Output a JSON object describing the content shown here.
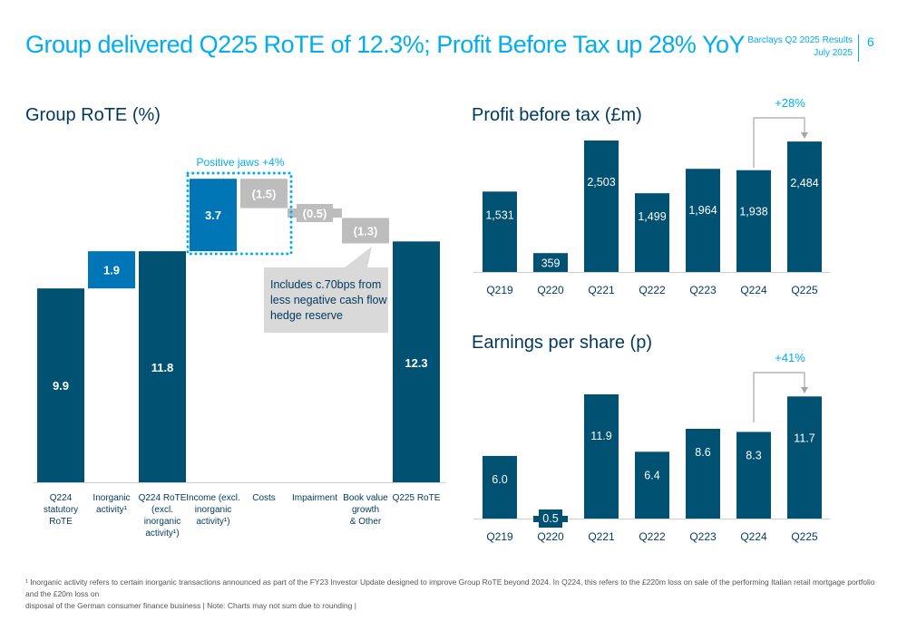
{
  "header": {
    "title": "Group delivered Q225 RoTE of 12.3%; Profit Before Tax up 28% YoY",
    "report_name": "Barclays Q2 2025 Results",
    "report_date": "July 2025",
    "page_number": "6"
  },
  "colors": {
    "dark_blue": "#005172",
    "mid_blue": "#0076b6",
    "light_blue": "#00aeef",
    "grey_bar": "#bdbdbd",
    "callout_grey": "#d9d9d9",
    "title_navy": "#00395d"
  },
  "chart_data": [
    {
      "type": "bar",
      "subtype": "waterfall",
      "title": "Group RoTE (%)",
      "categories": [
        "Q224 statutory RoTE",
        "Inorganic activity¹",
        "Q224 RoTE (excl. inorganic activity¹)",
        "Income (excl. inorganic activity¹)",
        "Costs",
        "Impairment",
        "Book value growth & Other",
        "Q225 RoTE"
      ],
      "category_lines": [
        [
          "Q224",
          "statutory",
          "RoTE"
        ],
        [
          "Inorganic",
          "activity¹"
        ],
        [
          "Q224 RoTE",
          "(excl.",
          "inorganic",
          "activity¹)"
        ],
        [
          "Income (excl.",
          "inorganic",
          "activity¹)"
        ],
        [
          "Costs"
        ],
        [
          "Impairment"
        ],
        [
          "Book value",
          "growth",
          "& Other"
        ],
        [
          "Q225 RoTE"
        ]
      ],
      "values": [
        9.9,
        1.9,
        11.8,
        3.7,
        -1.5,
        -0.5,
        -1.3,
        12.3
      ],
      "labels": [
        "9.9",
        "1.9",
        "11.8",
        "3.7",
        "(1.5)",
        "(0.5)",
        "(1.3)",
        "12.3"
      ],
      "kinds": [
        "total",
        "delta",
        "total",
        "delta",
        "delta",
        "delta",
        "delta",
        "total"
      ],
      "annotation_jaws": "Positive jaws +4%",
      "annotation_callout": "Includes c.70bps from less negative cash flow hedge reserve",
      "xlabel": "",
      "ylabel": "",
      "ylim": [
        0,
        14
      ],
      "grid": false,
      "legend": "none"
    },
    {
      "type": "bar",
      "title": "Profit before tax (£m)",
      "categories": [
        "Q219",
        "Q220",
        "Q221",
        "Q222",
        "Q223",
        "Q224",
        "Q225"
      ],
      "values": [
        1531,
        359,
        2503,
        1499,
        1964,
        1938,
        2484
      ],
      "labels": [
        "1,531",
        "359",
        "2,503",
        "1,499",
        "1,964",
        "1,938",
        "2,484"
      ],
      "growth_annotation": "+28%",
      "growth_from": "Q224",
      "growth_to": "Q225",
      "xlabel": "",
      "ylabel": "",
      "ylim": [
        0,
        2700
      ],
      "grid": false,
      "legend": "none"
    },
    {
      "type": "bar",
      "title": "Earnings per share (p)",
      "categories": [
        "Q219",
        "Q220",
        "Q221",
        "Q222",
        "Q223",
        "Q224",
        "Q225"
      ],
      "values": [
        6.0,
        0.5,
        11.9,
        6.4,
        8.6,
        8.3,
        11.7
      ],
      "labels": [
        "6.0",
        "0.5",
        "11.9",
        "6.4",
        "8.6",
        "8.3",
        "11.7"
      ],
      "growth_annotation": "+41%",
      "growth_from": "Q224",
      "growth_to": "Q225",
      "xlabel": "",
      "ylabel": "",
      "ylim": [
        0,
        13
      ],
      "grid": false,
      "legend": "none"
    }
  ],
  "footnote": {
    "line1": "¹ Inorganic activity refers to certain inorganic transactions announced as part of the FY23 Investor Update designed to improve Group RoTE beyond 2024. In Q224, this refers to the £220m loss on sale of the performing Italian retail mortgage portfolio and the £20m loss on",
    "line2": "disposal of the German consumer finance business | Note: Charts may not sum due to rounding |"
  }
}
